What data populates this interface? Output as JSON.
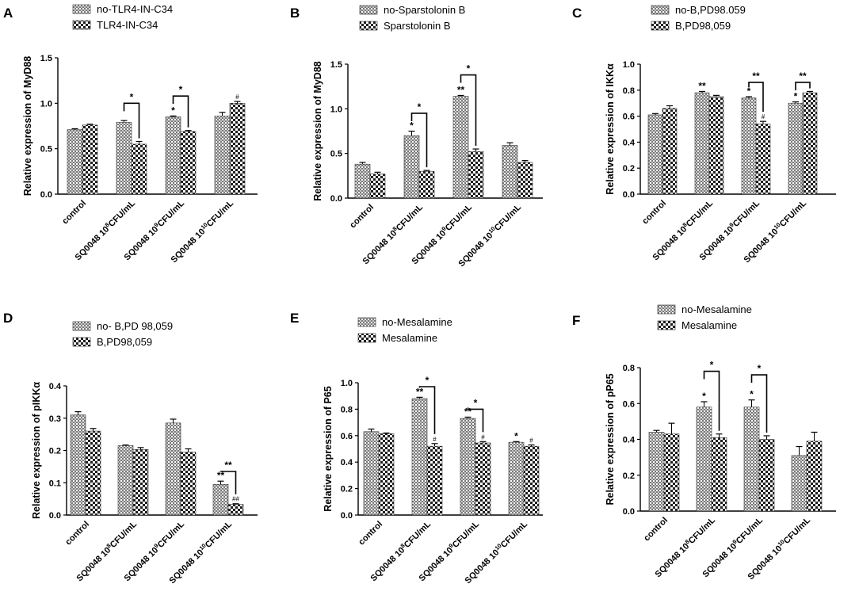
{
  "colors": {
    "bar_a": "#8a8a8a",
    "bar_b": "#2b2b2b",
    "background": "#ffffff",
    "ink": "#000000"
  },
  "chart_data": [
    {
      "panel": "A",
      "type": "bar",
      "ylabel": "Relative expression of MyD88",
      "ylim": [
        0,
        1.5
      ],
      "yticks": [
        "0.0",
        "0.5",
        "1.0",
        "1.5"
      ],
      "ytick_values": [
        0,
        0.5,
        1.0,
        1.5
      ],
      "categories": [
        {
          "pre": "control",
          "sup": "",
          "post": ""
        },
        {
          "pre": "SQ0048 10",
          "sup": "8",
          "post": "CFU/mL"
        },
        {
          "pre": "SQ0048 10",
          "sup": "9",
          "post": "CFU/mL"
        },
        {
          "pre": "SQ0048 10",
          "sup": "10",
          "post": "CFU/mL"
        }
      ],
      "series": [
        {
          "name": "no-TLR4-IN-C34",
          "values": [
            0.71,
            0.79,
            0.85,
            0.86
          ],
          "errors": [
            0.01,
            0.02,
            0.01,
            0.04
          ],
          "marks": [
            "",
            "",
            "*",
            ""
          ]
        },
        {
          "name": "TLR4-IN-C34",
          "values": [
            0.76,
            0.55,
            0.69,
            1.0
          ],
          "errors": [
            0.01,
            0.03,
            0.01,
            0.02
          ],
          "marks": [
            "",
            "",
            "",
            "#"
          ]
        }
      ],
      "brackets": [
        {
          "group": 1,
          "label": "*",
          "y": 1.0
        },
        {
          "group": 2,
          "label": "*",
          "y": 1.08
        }
      ]
    },
    {
      "panel": "B",
      "type": "bar",
      "ylabel": "Relative expression of MyD88",
      "ylim": [
        0,
        1.5
      ],
      "yticks": [
        "0.0",
        "0.5",
        "1.0",
        "1.5"
      ],
      "ytick_values": [
        0,
        0.5,
        1.0,
        1.5
      ],
      "categories": [
        {
          "pre": "control",
          "sup": "",
          "post": ""
        },
        {
          "pre": "SQ0048 10",
          "sup": "8",
          "post": "CFU/mL"
        },
        {
          "pre": "SQ0048 10",
          "sup": "9",
          "post": "CFU/mL"
        },
        {
          "pre": "SQ0048 10",
          "sup": "10",
          "post": "CFU/mL"
        }
      ],
      "series": [
        {
          "name": "no-Sparstolonin B",
          "values": [
            0.38,
            0.7,
            1.14,
            0.59
          ],
          "errors": [
            0.02,
            0.05,
            0.01,
            0.03
          ],
          "marks": [
            "",
            "*",
            "**",
            ""
          ]
        },
        {
          "name": "Sparstolonin B",
          "values": [
            0.27,
            0.3,
            0.52,
            0.4
          ],
          "errors": [
            0.02,
            0.01,
            0.03,
            0.02
          ],
          "marks": [
            "",
            "",
            "",
            ""
          ]
        }
      ],
      "brackets": [
        {
          "group": 1,
          "label": "*",
          "y": 0.95
        },
        {
          "group": 2,
          "label": "*",
          "y": 1.38
        }
      ]
    },
    {
      "panel": "C",
      "type": "bar",
      "ylabel": "Relative expression of IKKα",
      "ylim": [
        0,
        1.0
      ],
      "yticks": [
        "0.0",
        "0.2",
        "0.4",
        "0.6",
        "0.8",
        "1.0"
      ],
      "ytick_values": [
        0,
        0.2,
        0.4,
        0.6,
        0.8,
        1.0
      ],
      "categories": [
        {
          "pre": "control",
          "sup": "",
          "post": ""
        },
        {
          "pre": "SQ0048 10",
          "sup": "8",
          "post": "CFU/mL"
        },
        {
          "pre": "SQ0048 10",
          "sup": "9",
          "post": "CFU/mL"
        },
        {
          "pre": "SQ0048 10",
          "sup": "10",
          "post": "CFU/mL"
        }
      ],
      "series": [
        {
          "name": "no-B,PD98.059",
          "values": [
            0.61,
            0.78,
            0.74,
            0.7
          ],
          "errors": [
            0.01,
            0.01,
            0.01,
            0.01
          ],
          "marks": [
            "",
            "**",
            "*",
            "*"
          ]
        },
        {
          "name": "B,PD98,059",
          "values": [
            0.66,
            0.75,
            0.54,
            0.78
          ],
          "errors": [
            0.02,
            0.01,
            0.02,
            0.01
          ],
          "marks": [
            "",
            "",
            "#",
            ""
          ]
        }
      ],
      "brackets": [
        {
          "group": 2,
          "label": "**",
          "y": 0.86
        },
        {
          "group": 3,
          "label": "**",
          "y": 0.86
        }
      ]
    },
    {
      "panel": "D",
      "type": "bar",
      "ylabel": "Relative expression of pIKKα",
      "ylim": [
        0,
        0.4
      ],
      "yticks": [
        "0.0",
        "0.1",
        "0.2",
        "0.3",
        "0.4"
      ],
      "ytick_values": [
        0,
        0.1,
        0.2,
        0.3,
        0.4
      ],
      "categories": [
        {
          "pre": "control",
          "sup": "",
          "post": ""
        },
        {
          "pre": "SQ0048 10",
          "sup": "8",
          "post": "CFU/mL"
        },
        {
          "pre": "SQ0048 10",
          "sup": "9",
          "post": "CFU/mL"
        },
        {
          "pre": "SQ0048 10",
          "sup": "10",
          "post": "CFU/mL"
        }
      ],
      "series": [
        {
          "name": "no- B,PD 98,059",
          "values": [
            0.31,
            0.215,
            0.285,
            0.095
          ],
          "errors": [
            0.01,
            0.002,
            0.012,
            0.01
          ],
          "marks": [
            "",
            "",
            "",
            "**"
          ]
        },
        {
          "name": "B,PD98,059",
          "values": [
            0.26,
            0.203,
            0.195,
            0.033
          ],
          "errors": [
            0.008,
            0.006,
            0.01,
            0.002
          ],
          "marks": [
            "",
            "",
            "",
            "##"
          ]
        }
      ],
      "brackets": [
        {
          "group": 3,
          "label": "**",
          "y": 0.135
        }
      ]
    },
    {
      "panel": "E",
      "type": "bar",
      "ylabel": "Relative expression of P65",
      "ylim": [
        0,
        1.0
      ],
      "yticks": [
        "0.0",
        "0.2",
        "0.4",
        "0.6",
        "0.8",
        "1.0"
      ],
      "ytick_values": [
        0,
        0.2,
        0.4,
        0.6,
        0.8,
        1.0
      ],
      "categories": [
        {
          "pre": "control",
          "sup": "",
          "post": ""
        },
        {
          "pre": "SQ0048 10",
          "sup": "8",
          "post": "CFU/mL"
        },
        {
          "pre": "SQ0048 10",
          "sup": "9",
          "post": "CFU/mL"
        },
        {
          "pre": "SQ0048 10",
          "sup": "10",
          "post": "CFU/mL"
        }
      ],
      "series": [
        {
          "name": "no-Mesalamine",
          "values": [
            0.63,
            0.88,
            0.73,
            0.55
          ],
          "errors": [
            0.02,
            0.01,
            0.01,
            0.005
          ],
          "marks": [
            "",
            "**",
            "**",
            "*"
          ]
        },
        {
          "name": "Mesalamine",
          "values": [
            0.615,
            0.52,
            0.545,
            0.52
          ],
          "errors": [
            0.005,
            0.02,
            0.01,
            0.01
          ],
          "marks": [
            "",
            "#",
            "#",
            "#"
          ]
        }
      ],
      "brackets": [
        {
          "group": 1,
          "label": "*",
          "y": 0.97
        },
        {
          "group": 2,
          "label": "*",
          "y": 0.8
        }
      ]
    },
    {
      "panel": "F",
      "type": "bar",
      "ylabel": "Relative expression of pP65",
      "ylim": [
        0,
        0.8
      ],
      "yticks": [
        "0.0",
        "0.2",
        "0.4",
        "0.6",
        "0.8"
      ],
      "ytick_values": [
        0,
        0.2,
        0.4,
        0.6,
        0.8
      ],
      "categories": [
        {
          "pre": "control",
          "sup": "",
          "post": ""
        },
        {
          "pre": "SQ0048 10",
          "sup": "8",
          "post": "CFU/mL"
        },
        {
          "pre": "SQ0048 10",
          "sup": "9",
          "post": "CFU/mL"
        },
        {
          "pre": "SQ0048 10",
          "sup": "10",
          "post": "CFU/mL"
        }
      ],
      "series": [
        {
          "name": "no-Mesalamine",
          "values": [
            0.44,
            0.58,
            0.58,
            0.31
          ],
          "errors": [
            0.01,
            0.03,
            0.04,
            0.05
          ],
          "marks": [
            "",
            "*",
            "*",
            ""
          ]
        },
        {
          "name": "Mesalamine",
          "values": [
            0.43,
            0.41,
            0.4,
            0.39
          ],
          "errors": [
            0.06,
            0.02,
            0.02,
            0.05
          ],
          "marks": [
            "",
            "",
            "",
            ""
          ]
        }
      ],
      "brackets": [
        {
          "group": 1,
          "label": "*",
          "y": 0.78
        },
        {
          "group": 2,
          "label": "*",
          "y": 0.76
        }
      ]
    }
  ]
}
